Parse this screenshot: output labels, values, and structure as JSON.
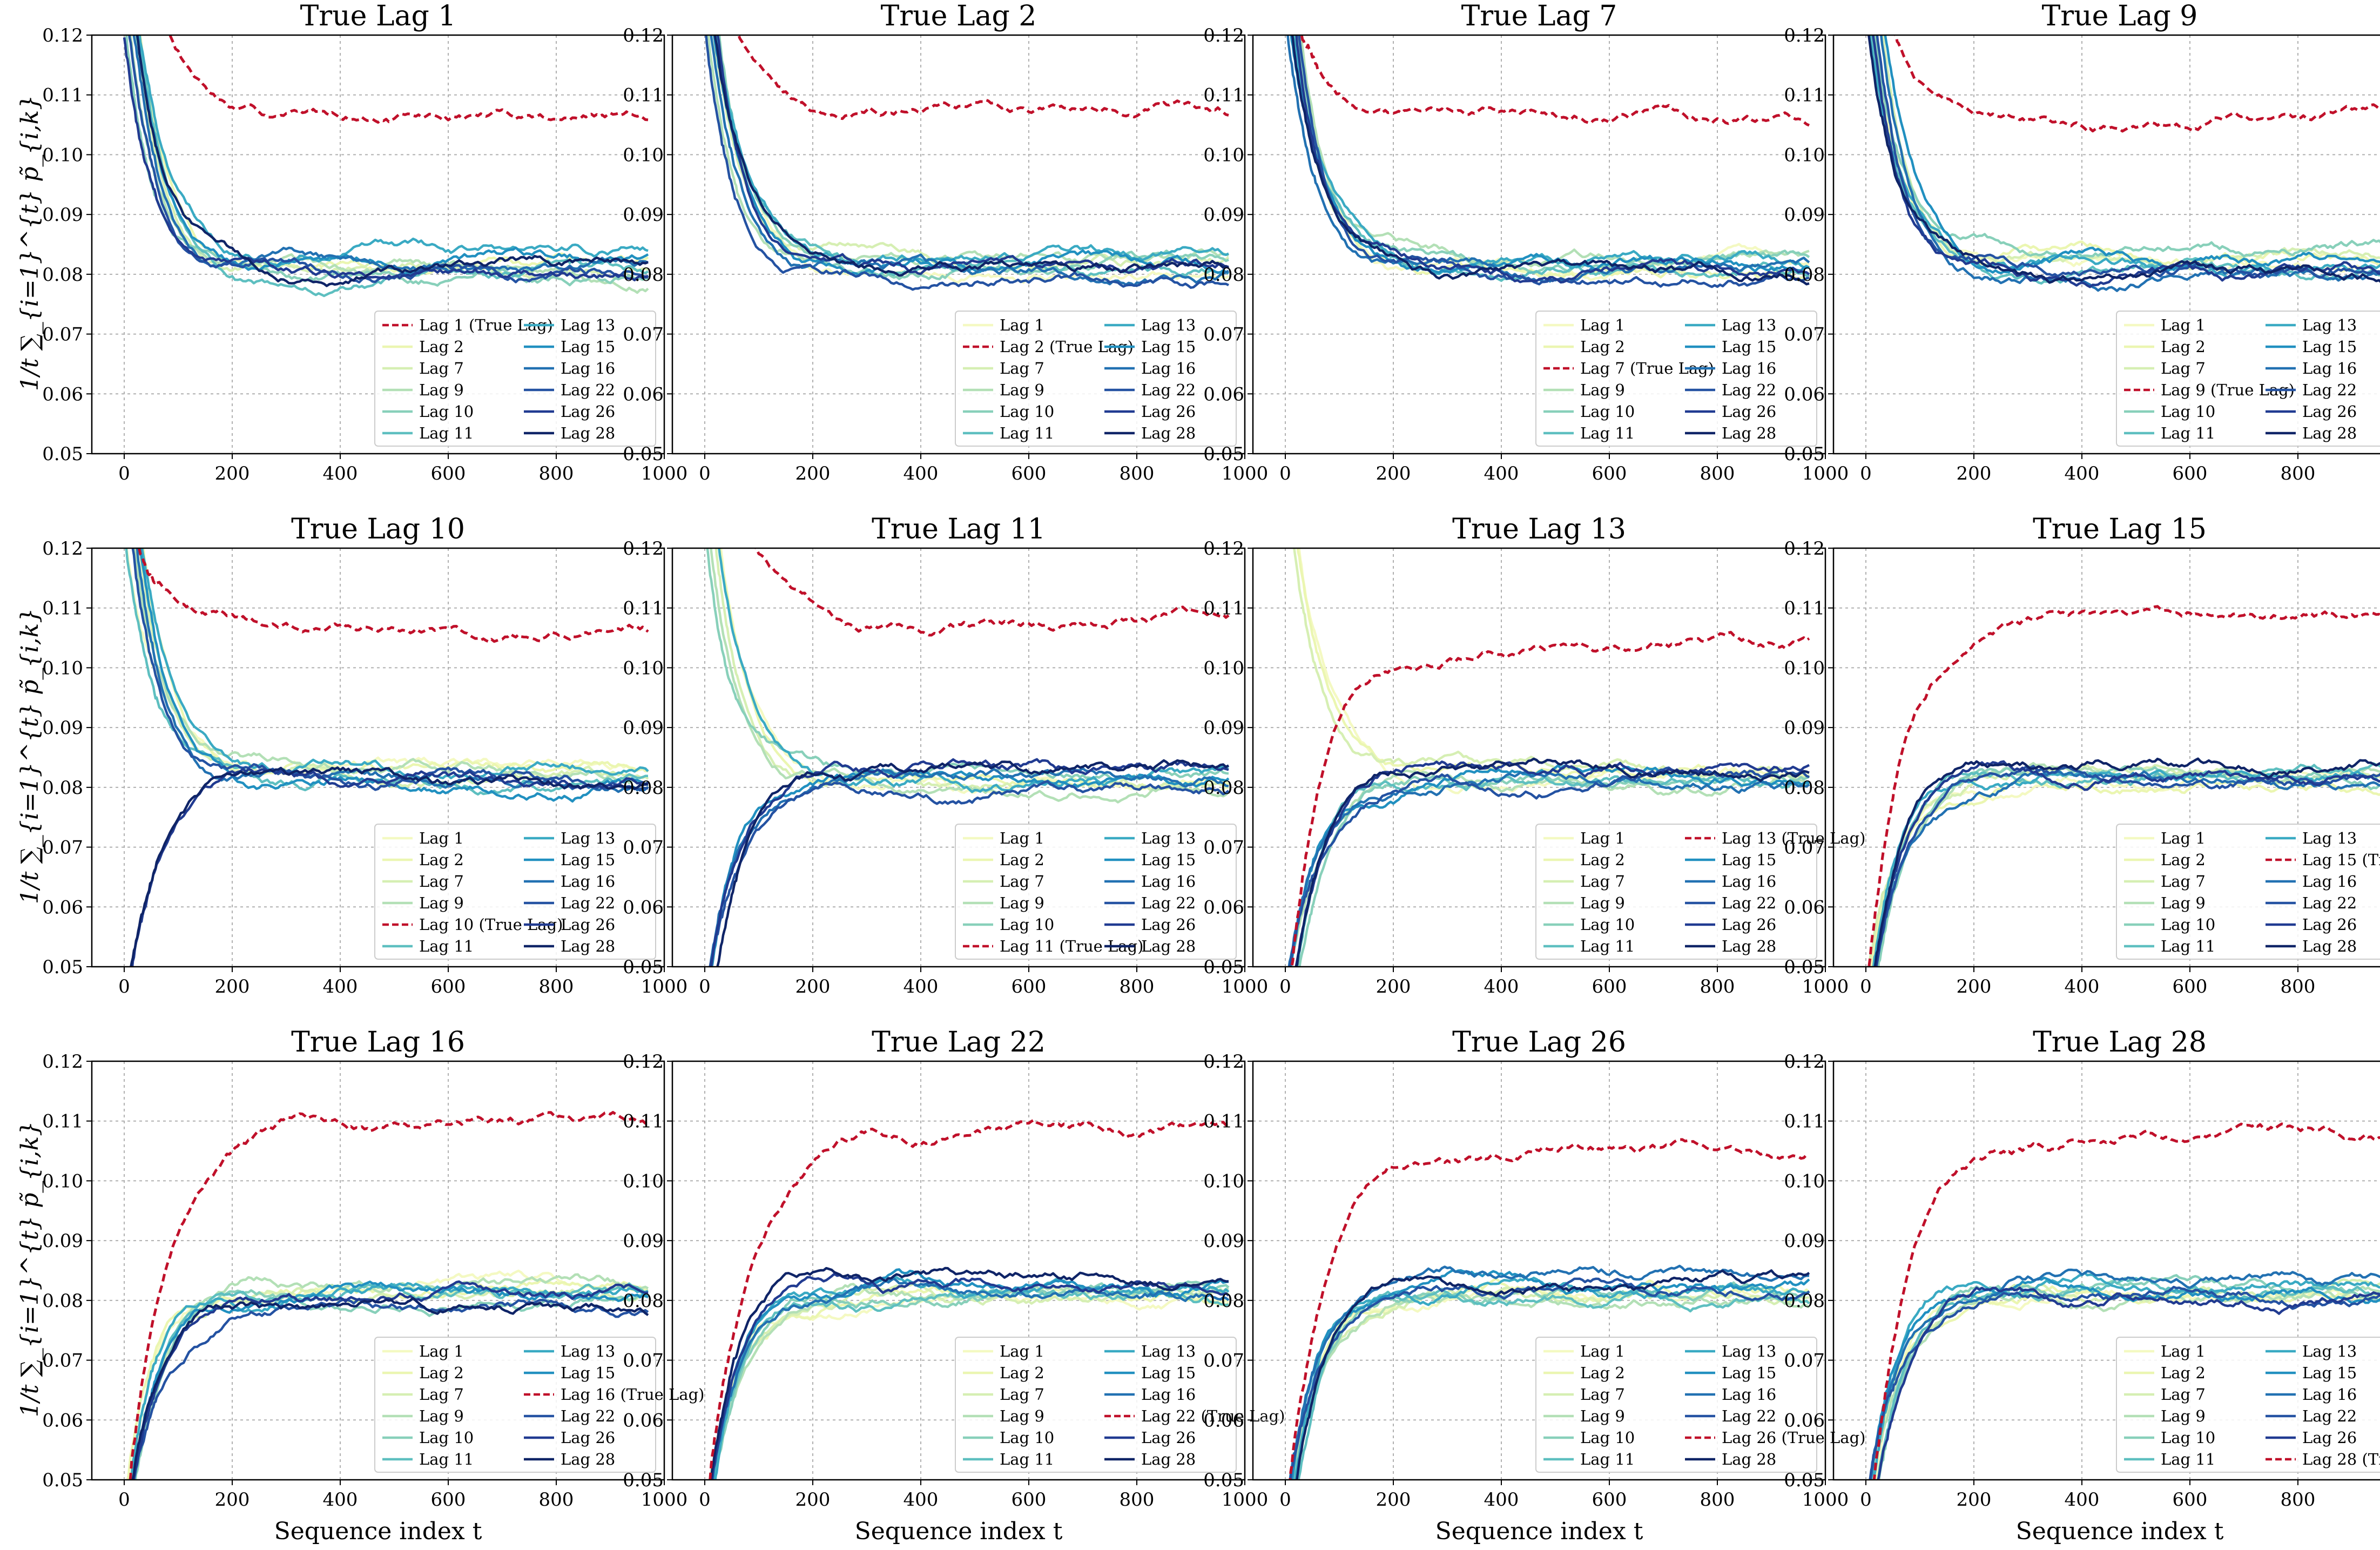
{
  "figure": {
    "ylabel": "1/t ∑_{i=1}^{t} p̃_{i,k}",
    "xlabel": "Sequence index t"
  },
  "chart_data": {
    "type": "line",
    "xlim": [
      -60,
      1000
    ],
    "ylim": [
      0.05,
      0.12
    ],
    "xticks": [
      0,
      200,
      400,
      600,
      800,
      1000
    ],
    "xtick_labels": [
      "0",
      "200",
      "400",
      "600",
      "800",
      "1000"
    ],
    "yticks": [
      0.05,
      0.06,
      0.07,
      0.08,
      0.09,
      0.1,
      0.11,
      0.12
    ],
    "ytick_labels": [
      "0.05",
      "0.06",
      "0.07",
      "0.08",
      "0.09",
      "0.10",
      "0.11",
      "0.12"
    ],
    "grid": true,
    "legend_placement": "lower-right",
    "legend_columns": 2,
    "true_lag_suffix": " (True Lag)",
    "true_lag_color": "#c0102a",
    "lags": [
      {
        "label": "Lag 1",
        "lag": 1,
        "color": "#f4f9c2"
      },
      {
        "label": "Lag 2",
        "lag": 2,
        "color": "#ebf6b1"
      },
      {
        "label": "Lag 7",
        "lag": 7,
        "color": "#d6efb3"
      },
      {
        "label": "Lag 9",
        "lag": 9,
        "color": "#b3e0b6"
      },
      {
        "label": "Lag 10",
        "lag": 10,
        "color": "#88d0ba"
      },
      {
        "label": "Lag 11",
        "lag": 11,
        "color": "#5ebfc0"
      },
      {
        "label": "Lag 13",
        "lag": 13,
        "color": "#3aaac3"
      },
      {
        "label": "Lag 15",
        "lag": 15,
        "color": "#2190c0"
      },
      {
        "label": "Lag 16",
        "lag": 16,
        "color": "#2271b2"
      },
      {
        "label": "Lag 22",
        "lag": 22,
        "color": "#2452a2"
      },
      {
        "label": "Lag 26",
        "lag": 26,
        "color": "#213b91"
      },
      {
        "label": "Lag 28",
        "lag": 28,
        "color": "#0f2467"
      }
    ],
    "panels": [
      {
        "title": "True Lag 1",
        "true_index": 0,
        "final": [
          0.1065,
          0.0815,
          0.081,
          0.08,
          0.0795,
          0.079,
          0.0835,
          0.0825,
          0.082,
          0.081,
          0.08,
          0.081
        ]
      },
      {
        "title": "True Lag 2",
        "true_index": 1,
        "final": [
          0.0805,
          0.1075,
          0.0825,
          0.082,
          0.0815,
          0.081,
          0.0825,
          0.0815,
          0.0808,
          0.08,
          0.081,
          0.0812
        ]
      },
      {
        "title": "True Lag 7",
        "true_index": 2,
        "final": [
          0.081,
          0.0805,
          0.106,
          0.0825,
          0.0815,
          0.08,
          0.081,
          0.082,
          0.081,
          0.08,
          0.0805,
          0.08
        ]
      },
      {
        "title": "True Lag 9",
        "true_index": 3,
        "final": [
          0.0815,
          0.083,
          0.082,
          0.1055,
          0.084,
          0.0805,
          0.081,
          0.0825,
          0.08,
          0.081,
          0.0795,
          0.0795
        ]
      },
      {
        "title": "True Lag 10",
        "true_index": 4,
        "final": [
          0.0825,
          0.0835,
          0.082,
          0.083,
          0.107,
          0.0815,
          0.0825,
          0.081,
          0.0805,
          0.081,
          0.0805,
          0.0805
        ]
      },
      {
        "title": "True Lag 11",
        "true_index": 5,
        "final": [
          0.08,
          0.0805,
          0.0815,
          0.081,
          0.082,
          0.1075,
          0.0805,
          0.0815,
          0.081,
          0.08,
          0.0825,
          0.0825
        ]
      },
      {
        "title": "True Lag 13",
        "true_index": 6,
        "final": [
          0.0815,
          0.082,
          0.0825,
          0.081,
          0.0805,
          0.081,
          0.1045,
          0.082,
          0.0815,
          0.081,
          0.0835,
          0.084
        ]
      },
      {
        "title": "True Lag 15",
        "true_index": 7,
        "final": [
          0.0815,
          0.081,
          0.082,
          0.0825,
          0.081,
          0.0815,
          0.082,
          0.1085,
          0.081,
          0.0815,
          0.082,
          0.084
        ]
      },
      {
        "title": "True Lag 16",
        "true_index": 8,
        "final": [
          0.0815,
          0.0825,
          0.081,
          0.082,
          0.08,
          0.0805,
          0.0825,
          0.0815,
          0.1095,
          0.079,
          0.081,
          0.079
        ]
      },
      {
        "title": "True Lag 22",
        "true_index": 9,
        "final": [
          0.0795,
          0.08,
          0.0805,
          0.0815,
          0.081,
          0.0805,
          0.081,
          0.082,
          0.0815,
          0.108,
          0.0825,
          0.0835
        ]
      },
      {
        "title": "True Lag 26",
        "true_index": 10,
        "final": [
          0.0805,
          0.081,
          0.08,
          0.0805,
          0.081,
          0.08,
          0.0815,
          0.082,
          0.084,
          0.0825,
          0.1055,
          0.082
        ]
      },
      {
        "title": "True Lag 28",
        "true_index": 11,
        "final": [
          0.0815,
          0.08,
          0.081,
          0.0805,
          0.0815,
          0.081,
          0.083,
          0.0815,
          0.0835,
          0.081,
          0.0805,
          0.107
        ]
      }
    ]
  }
}
